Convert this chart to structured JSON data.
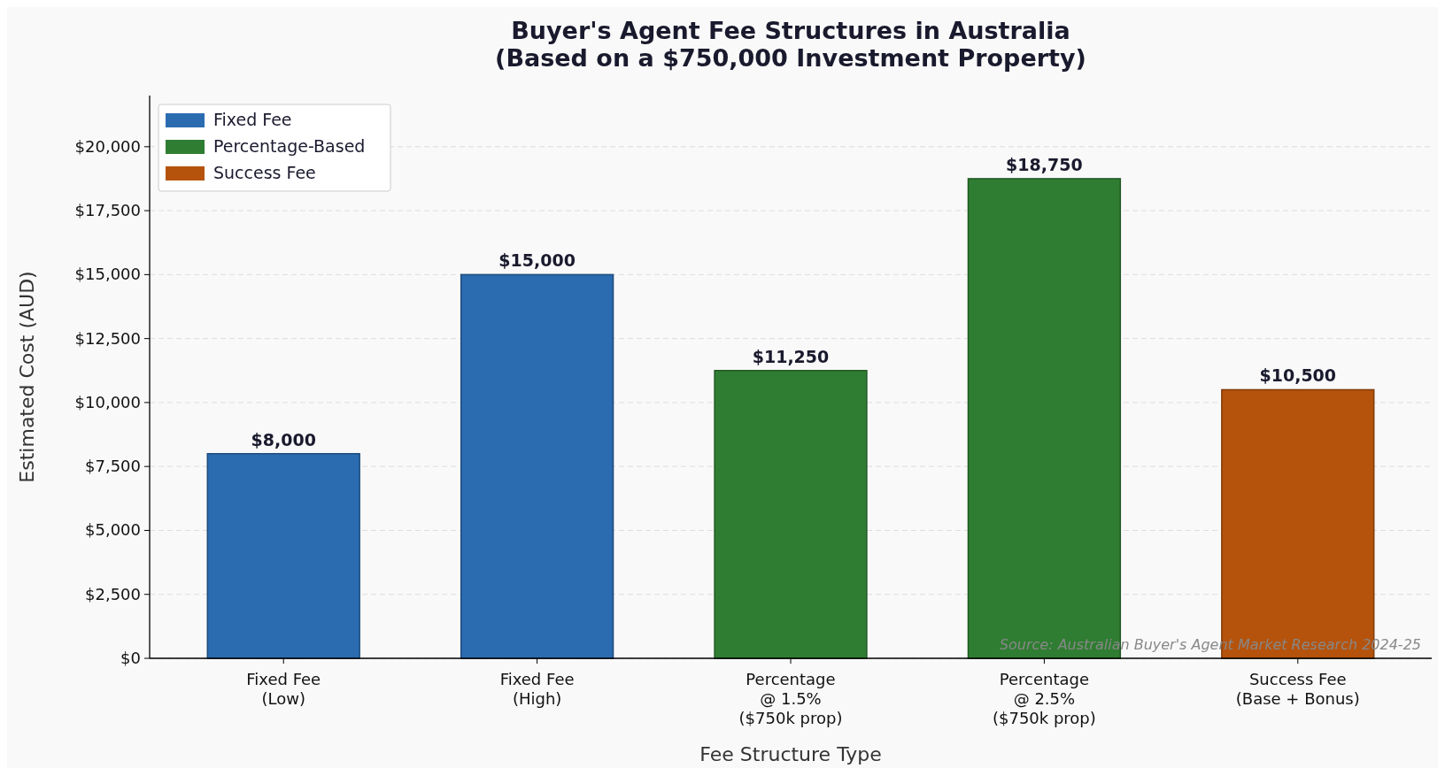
{
  "chart_data": {
    "type": "bar",
    "title": "Buyer's Agent Fee Structures in Australia\n(Based on a $750,000 Investment Property)",
    "xlabel": "Fee Structure Type",
    "ylabel": "Estimated Cost (AUD)",
    "categories": [
      "Fixed Fee\n(Low)",
      "Fixed Fee\n(High)",
      "Percentage\n@ 1.5%\n($750k prop)",
      "Percentage\n@ 2.5%\n($750k prop)",
      "Success Fee\n(Base + Bonus)"
    ],
    "series": [
      {
        "name": "Fixed Fee",
        "color": "#2b6cb0",
        "values": [
          8000,
          15000,
          null,
          null,
          null
        ],
        "value_labels": [
          "$8,000",
          "$15,000",
          null,
          null,
          null
        ]
      },
      {
        "name": "Percentage-Based",
        "color": "#2f7d32",
        "values": [
          null,
          null,
          11250,
          18750,
          null
        ],
        "value_labels": [
          null,
          null,
          "$11,250",
          "$18,750",
          null
        ]
      },
      {
        "name": "Success Fee",
        "color": "#b5530c",
        "values": [
          null,
          null,
          null,
          null,
          10500
        ],
        "value_labels": [
          null,
          null,
          null,
          null,
          "$10,500"
        ]
      }
    ],
    "ylim": [
      0,
      22000
    ],
    "yticks": [
      {
        "value": 0,
        "label": "$0"
      },
      {
        "value": 2500,
        "label": "$2,500"
      },
      {
        "value": 5000,
        "label": "$5,000"
      },
      {
        "value": 7500,
        "label": "$7,500"
      },
      {
        "value": 10000,
        "label": "$10,000"
      },
      {
        "value": 12500,
        "label": "$12,500"
      },
      {
        "value": 15000,
        "label": "$15,000"
      },
      {
        "value": 17500,
        "label": "$17,500"
      },
      {
        "value": 20000,
        "label": "$20,000"
      }
    ],
    "grid": "y",
    "legend": "top left",
    "annotations": [
      "Source: Australian Buyer's Agent Market Research 2024-25"
    ]
  }
}
